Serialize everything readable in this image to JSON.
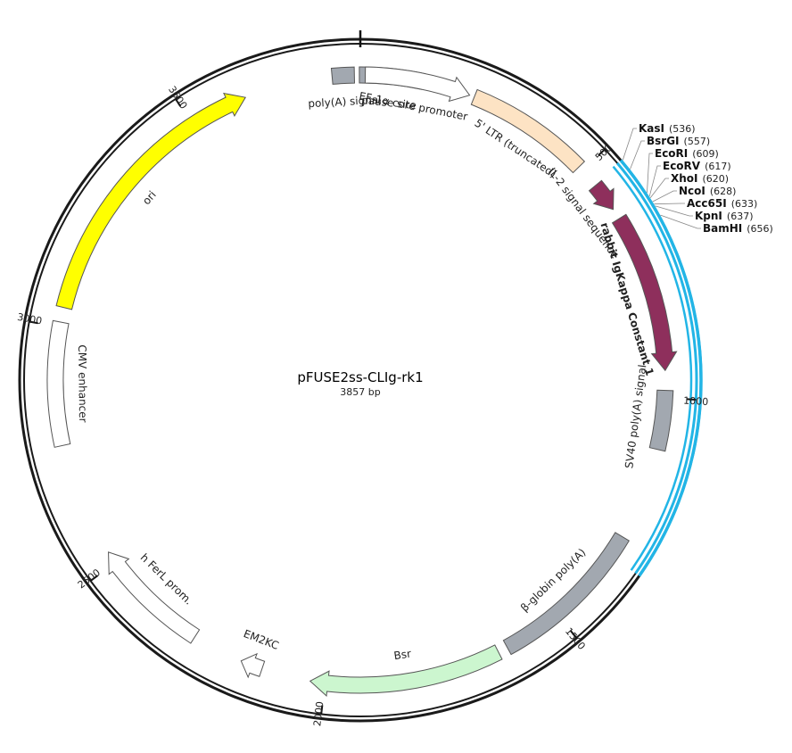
{
  "plasmid": {
    "name": "pFUSE2ss-CLIg-rk1",
    "length_label": "3857 bp",
    "length": 3857
  },
  "ticks": [
    {
      "pos": 500,
      "label": "500"
    },
    {
      "pos": 1000,
      "label": "1000"
    },
    {
      "pos": 1500,
      "label": "1500"
    },
    {
      "pos": 2000,
      "label": "2000"
    },
    {
      "pos": 2500,
      "label": "2500"
    },
    {
      "pos": 3000,
      "label": "3000"
    },
    {
      "pos": 3500,
      "label": "3500"
    }
  ],
  "mcs_region": {
    "start": 534,
    "end": 1340,
    "color": "#22b5e6"
  },
  "features": [
    {
      "id": "polya-signal",
      "label": "poly(A) signal",
      "start": 3800,
      "end": 3845,
      "color": "#a2a8b0",
      "arrow": false
    },
    {
      "id": "pause-site",
      "label": "pause site",
      "start": 3855,
      "end": 3985,
      "color": "#a2a8b0",
      "arrow": false
    },
    {
      "id": "ef1a-core-promoter",
      "label": "EF-1α core promoter",
      "start": 10,
      "end": 225,
      "color": "#ffffff",
      "arrow": true
    },
    {
      "id": "5-ltr-truncated",
      "label": "5' LTR (truncated)",
      "start": 235,
      "end": 490,
      "color": "#fde3c4",
      "arrow": false
    },
    {
      "id": "il2-signal-sequence",
      "label": "IL-2 signal sequence",
      "start": 540,
      "end": 600,
      "color": "#8e2f5c",
      "arrow": true
    },
    {
      "id": "rabbit-igkappa-constant-1",
      "label": "rabbit IgKappa Constant 1",
      "start": 622,
      "end": 945,
      "color": "#8e2f5c",
      "arrow": true
    },
    {
      "id": "sv40-polya-signal",
      "label": "SV40 poly(A) signal",
      "start": 985,
      "end": 1105,
      "color": "#a2a8b0",
      "arrow": false
    },
    {
      "id": "beta-globin-polya",
      "label": "β-globin poly(A)",
      "start": 1295,
      "end": 1620,
      "color": "#a2a8b0",
      "arrow": false
    },
    {
      "id": "bsr",
      "label": "Bsr",
      "start": 1640,
      "end": 2030,
      "color": "#ccf6cf",
      "arrow": true
    },
    {
      "id": "em2kc",
      "label": "EM2KC",
      "start": 2130,
      "end": 2175,
      "color": "#ffffff",
      "arrow": true
    },
    {
      "id": "h-ferl-prom",
      "label": "h FerL prom.",
      "start": 2280,
      "end": 2525,
      "color": "#ffffff",
      "arrow": true
    },
    {
      "id": "cmv-enhancer",
      "label": "CMV enhancer",
      "start": 2760,
      "end": 3010,
      "color": "#ffffff",
      "arrow": false
    },
    {
      "id": "ori",
      "label": "ori",
      "start": 3040,
      "end": 3620,
      "color": "#ffff00",
      "arrow": true
    }
  ],
  "restriction_sites": [
    {
      "name": "KasI",
      "pos_label": "(536)",
      "pos": 536
    },
    {
      "name": "BsrGI",
      "pos_label": "(557)",
      "pos": 557
    },
    {
      "name": "EcoRI",
      "pos_label": "(609)",
      "pos": 609
    },
    {
      "name": "EcoRV",
      "pos_label": "(617)",
      "pos": 617
    },
    {
      "name": "XhoI",
      "pos_label": "(620)",
      "pos": 620
    },
    {
      "name": "NcoI",
      "pos_label": "(628)",
      "pos": 628
    },
    {
      "name": "Acc65I",
      "pos_label": "(633)",
      "pos": 633
    },
    {
      "name": "KpnI",
      "pos_label": "(637)",
      "pos": 637
    },
    {
      "name": "BamHI",
      "pos_label": "(656)",
      "pos": 656
    }
  ]
}
